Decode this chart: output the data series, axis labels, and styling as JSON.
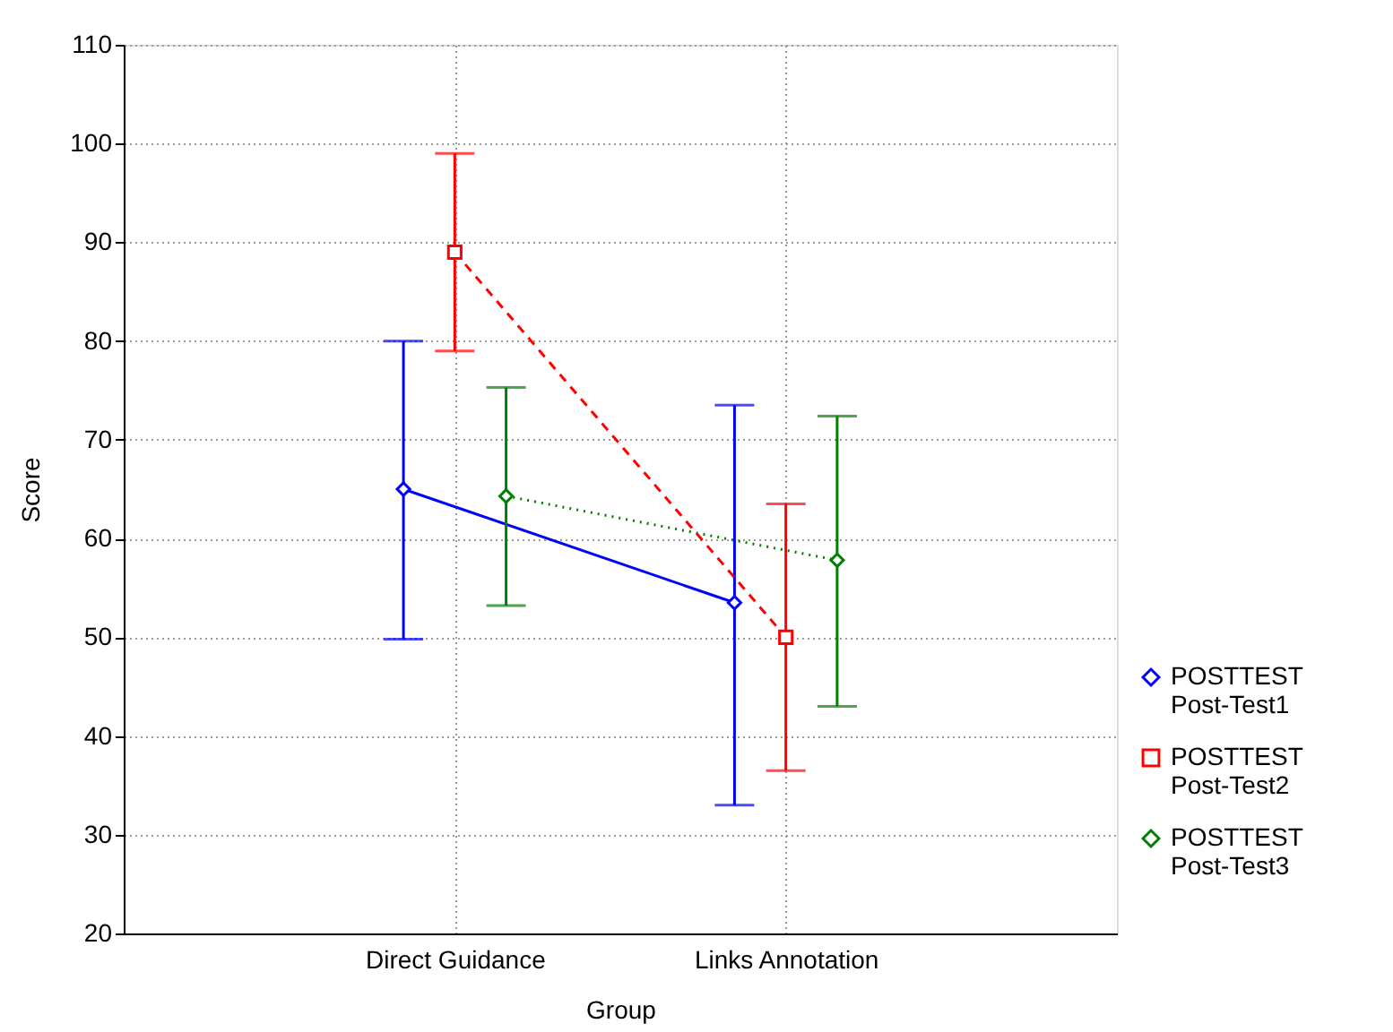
{
  "chart_data": {
    "type": "line",
    "xlabel": "Group",
    "ylabel": "Score",
    "categories": [
      "Direct Guidance",
      "Links Annotation"
    ],
    "ylim": [
      20,
      110
    ],
    "yticks": [
      20,
      30,
      40,
      50,
      60,
      70,
      80,
      90,
      100,
      110
    ],
    "grid": true,
    "legend": "bottom right",
    "series": [
      {
        "name": "POSTTEST Post-Test1",
        "color": "#0000ff",
        "values": [
          65,
          53.5
        ],
        "errors": [
          [
            49.8,
            80
          ],
          [
            33,
            73.5
          ]
        ],
        "marker": "diamond",
        "line_style": "solid"
      },
      {
        "name": "POSTTEST Post-Test2",
        "color": "#ff0000",
        "values": [
          89,
          50
        ],
        "errors": [
          [
            79,
            99
          ],
          [
            36.5,
            63.5
          ]
        ],
        "marker": "square",
        "line_style": "dashed"
      },
      {
        "name": "POSTTEST Post-Test3",
        "color": "#008000",
        "values": [
          64.3,
          57.8
        ],
        "errors": [
          [
            53.2,
            75.3
          ],
          [
            43,
            72.4
          ]
        ],
        "marker": "diamond",
        "line_style": "dotted"
      }
    ]
  }
}
